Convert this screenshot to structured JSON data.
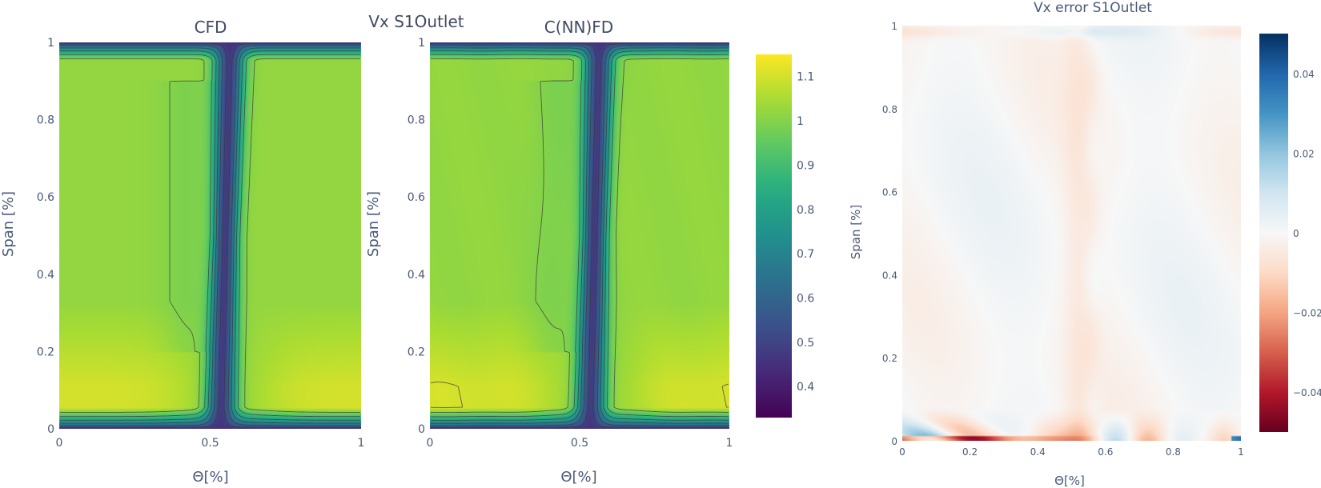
{
  "figure": {
    "left_title": "Vx S1Outlet",
    "right_title": "Vx error S1Outlet"
  },
  "chart_data": [
    {
      "type": "heatmap",
      "subtitle": "CFD",
      "xlabel": "Θ[%]",
      "ylabel": "Span [%]",
      "xlim": [
        0,
        1
      ],
      "ylim": [
        0,
        1
      ],
      "xticks": [
        "0",
        "0.5",
        "1"
      ],
      "yticks": [
        "0",
        "0.2",
        "0.4",
        "0.6",
        "0.8",
        "1"
      ],
      "colorscale": "viridis",
      "zlim": [
        0.33,
        1.15
      ],
      "field": {
        "core_value": 1.02,
        "hub_region_value": 1.1,
        "wake_center_theta": 0.55,
        "wake_min_value": 0.45,
        "contour_levels": [
          0.4,
          0.5,
          0.6,
          0.7,
          0.8,
          0.9,
          1.0,
          1.1
        ]
      }
    },
    {
      "type": "heatmap",
      "subtitle": "C(NN)FD",
      "xlabel": "Θ[%]",
      "ylabel": "Span [%]",
      "xlim": [
        0,
        1
      ],
      "ylim": [
        0,
        1
      ],
      "xticks": [
        "0",
        "0.5",
        "1"
      ],
      "yticks": [
        "0",
        "0.2",
        "0.4",
        "0.6",
        "0.8",
        "1"
      ],
      "colorscale": "viridis",
      "zlim": [
        0.33,
        1.15
      ],
      "field": {
        "core_value": 1.02,
        "hub_region_value": 1.1,
        "wake_center_theta": 0.55,
        "wake_min_value": 0.45,
        "contour_levels": [
          0.4,
          0.5,
          0.6,
          0.7,
          0.8,
          0.9,
          1.0,
          1.1
        ]
      }
    },
    {
      "type": "colorbar",
      "colorscale": "viridis",
      "range": [
        0.33,
        1.15
      ],
      "tick_values": [
        0.4,
        0.5,
        0.6,
        0.7,
        0.8,
        0.9,
        1.0,
        1.1
      ],
      "tick_labels": [
        "0.4",
        "0.5",
        "0.6",
        "0.7",
        "0.8",
        "0.9",
        "1",
        "1.1"
      ]
    },
    {
      "type": "heatmap",
      "xlabel": "Θ[%]",
      "ylabel": "Span [%]",
      "xlim": [
        0,
        1
      ],
      "ylim": [
        0,
        1
      ],
      "xticks": [
        "0",
        "0.2",
        "0.4",
        "0.6",
        "0.8",
        "1"
      ],
      "yticks": [
        "0",
        "0.2",
        "0.4",
        "0.6",
        "0.8",
        "1"
      ],
      "colorscale": "RdBu",
      "zlim": [
        -0.05,
        0.05
      ],
      "field": {
        "background_value": 0.0,
        "hub_band_span": [
          0.0,
          0.07
        ],
        "hub_error_extremes": [
          -0.03,
          0.035
        ]
      },
      "colorbar": {
        "range": [
          -0.05,
          0.05
        ],
        "tick_values": [
          -0.04,
          -0.02,
          0,
          0.02,
          0.04
        ],
        "tick_labels": [
          "−0.04",
          "−0.02",
          "0",
          "0.02",
          "0.04"
        ]
      }
    }
  ]
}
